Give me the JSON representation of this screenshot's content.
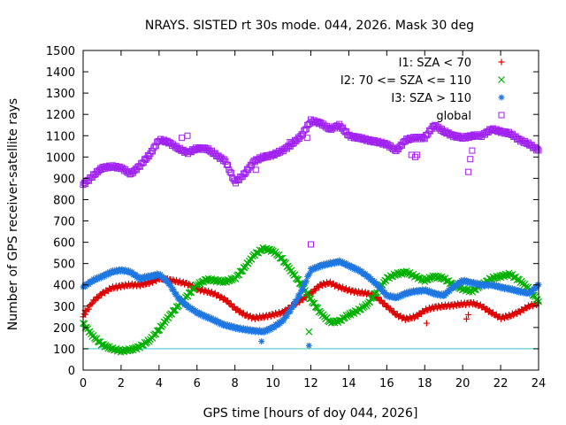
{
  "chart_data": {
    "type": "scatter",
    "title": "NRAYS. SISTED rt 30s mode. 044, 2026. Mask 30 deg",
    "xlabel": "GPS time [hours of doy 044, 2026]",
    "ylabel": "Number of GPS receiver-satellite rays",
    "xlim": [
      0,
      24
    ],
    "ylim": [
      0,
      1500
    ],
    "xticks": [
      0,
      2,
      4,
      6,
      8,
      10,
      12,
      14,
      16,
      18,
      20,
      22,
      24
    ],
    "yticks": [
      0,
      100,
      200,
      300,
      400,
      500,
      600,
      700,
      800,
      900,
      1000,
      1100,
      1200,
      1300,
      1400,
      1500
    ],
    "mask_line": {
      "y": 100,
      "color": "#33c7d1"
    },
    "legend_position": "top-right",
    "series": [
      {
        "name": "I1: SZA < 70",
        "marker": "+",
        "color": "#dd0000",
        "x": [
          0,
          0.5,
          1,
          1.5,
          2,
          2.5,
          3,
          3.5,
          4,
          4.5,
          5,
          5.5,
          6,
          6.5,
          7,
          7.5,
          8,
          8.5,
          9,
          9.5,
          10,
          10.5,
          11,
          11.5,
          12,
          12.5,
          13,
          13.5,
          14,
          14.5,
          15,
          15.5,
          16,
          16.5,
          17,
          17.5,
          18,
          18.5,
          19,
          19.5,
          20,
          20.5,
          21,
          21.5,
          22,
          22.5,
          23,
          23.5,
          24
        ],
        "y": [
          250,
          320,
          360,
          385,
          395,
          400,
          400,
          410,
          430,
          425,
          415,
          405,
          380,
          370,
          355,
          330,
          290,
          260,
          245,
          250,
          260,
          270,
          300,
          330,
          360,
          400,
          410,
          390,
          375,
          365,
          360,
          340,
          300,
          260,
          240,
          250,
          280,
          295,
          300,
          305,
          310,
          315,
          300,
          270,
          245,
          255,
          275,
          300,
          315
        ]
      },
      {
        "name": "I2: 70 <= SZA <= 110",
        "marker": "x",
        "color": "#00b000",
        "x": [
          0,
          0.5,
          1,
          1.5,
          2,
          2.5,
          3,
          3.5,
          4,
          4.5,
          5,
          5.5,
          6,
          6.5,
          7,
          7.5,
          8,
          8.5,
          9,
          9.5,
          10,
          10.5,
          11,
          11.5,
          12,
          12.5,
          13,
          13.5,
          14,
          14.5,
          15,
          15.5,
          16,
          16.5,
          17,
          17.5,
          18,
          18.5,
          19,
          19.5,
          20,
          20.5,
          21,
          21.5,
          22,
          22.5,
          23,
          23.5,
          24
        ],
        "y": [
          220,
          160,
          120,
          100,
          90,
          95,
          110,
          140,
          190,
          250,
          300,
          350,
          400,
          425,
          420,
          415,
          430,
          480,
          540,
          570,
          560,
          520,
          460,
          400,
          330,
          270,
          225,
          230,
          260,
          280,
          310,
          370,
          430,
          450,
          460,
          440,
          420,
          440,
          430,
          400,
          380,
          370,
          400,
          430,
          440,
          450,
          420,
          380,
          320
        ]
      },
      {
        "name": "I3: SZA > 110",
        "marker": "*",
        "color": "#1f77e0",
        "x": [
          0,
          0.5,
          1,
          1.5,
          2,
          2.5,
          3,
          3.5,
          4,
          4.5,
          5,
          5.5,
          6,
          6.5,
          7,
          7.5,
          8,
          8.5,
          9,
          9.5,
          10,
          10.5,
          11,
          11.5,
          12,
          12.5,
          13,
          13.5,
          14,
          14.5,
          15,
          15.5,
          16,
          16.5,
          17,
          17.5,
          18,
          18.5,
          19,
          19.5,
          20,
          20.5,
          21,
          21.5,
          22,
          22.5,
          23,
          23.5,
          24
        ],
        "y": [
          390,
          420,
          440,
          460,
          470,
          460,
          430,
          440,
          450,
          410,
          340,
          300,
          270,
          250,
          230,
          210,
          200,
          190,
          185,
          180,
          200,
          230,
          290,
          370,
          470,
          490,
          500,
          510,
          490,
          470,
          440,
          400,
          350,
          340,
          360,
          370,
          375,
          360,
          350,
          390,
          420,
          410,
          400,
          400,
          390,
          380,
          370,
          360,
          400
        ]
      },
      {
        "name": "global",
        "marker": "square",
        "color": "#a020f0",
        "x": [
          0,
          0.5,
          1,
          1.5,
          2,
          2.5,
          3,
          3.5,
          4,
          4.5,
          5,
          5.5,
          6,
          6.5,
          7,
          7.5,
          8,
          8.5,
          9,
          9.5,
          10,
          10.5,
          11,
          11.5,
          12,
          12.5,
          13,
          13.5,
          14,
          14.5,
          15,
          15.5,
          16,
          16.5,
          17,
          17.5,
          18,
          18.5,
          19,
          19.5,
          20,
          20.5,
          21,
          21.5,
          22,
          22.5,
          23,
          23.5,
          24
        ],
        "y": [
          870,
          910,
          950,
          955,
          950,
          920,
          960,
          1010,
          1080,
          1070,
          1040,
          1020,
          1040,
          1040,
          1010,
          980,
          880,
          920,
          980,
          1000,
          1010,
          1030,
          1060,
          1100,
          1170,
          1160,
          1130,
          1150,
          1100,
          1090,
          1080,
          1070,
          1060,
          1030,
          1080,
          1090,
          1090,
          1150,
          1120,
          1100,
          1090,
          1100,
          1100,
          1130,
          1120,
          1110,
          1080,
          1060,
          1030
        ]
      }
    ],
    "outliers": [
      {
        "series": "global",
        "x": [
          5.2,
          5.5,
          9.1,
          10.9,
          11.8,
          12.0,
          17.3,
          20.3,
          20.4,
          20.5,
          17.5,
          17.6
        ],
        "y": [
          1090,
          1100,
          940,
          1070,
          1090,
          590,
          1010,
          930,
          990,
          1030,
          1000,
          1010
        ]
      },
      {
        "series": "I1: SZA < 70",
        "x": [
          0.1,
          18.1,
          20.2,
          20.3
        ],
        "y": [
          280,
          220,
          240,
          260
        ]
      },
      {
        "series": "I2: 70 <= SZA <= 110",
        "x": [
          11.9
        ],
        "y": [
          180
        ]
      },
      {
        "series": "I3: SZA > 110",
        "x": [
          9.4,
          11.9
        ],
        "y": [
          135,
          115
        ]
      }
    ]
  }
}
